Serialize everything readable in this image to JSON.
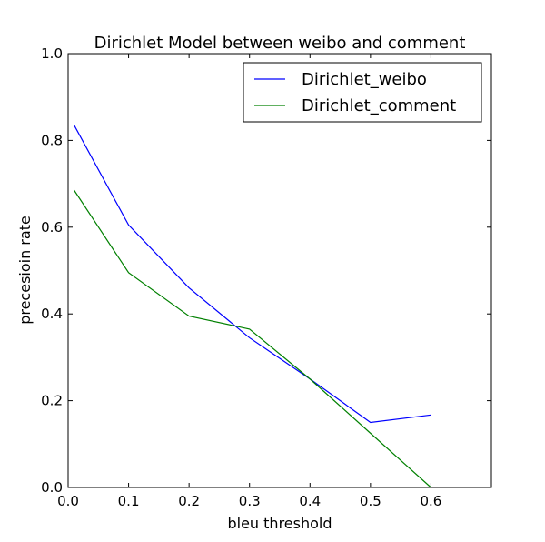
{
  "chart_data": {
    "type": "line",
    "title": "Dirichlet Model between weibo and comment",
    "xlabel": "bleu threshold",
    "ylabel": "precesioin rate",
    "xlim": [
      0.0,
      0.7
    ],
    "ylim": [
      0.0,
      1.0
    ],
    "x_ticks": [
      "0.0",
      "0.1",
      "0.2",
      "0.3",
      "0.4",
      "0.5",
      "0.6"
    ],
    "y_ticks": [
      "0.0",
      "0.2",
      "0.4",
      "0.6",
      "0.8",
      "1.0"
    ],
    "grid": false,
    "legend_position": "top-right",
    "series": [
      {
        "name": "Dirichlet_weibo",
        "color": "#0000ff",
        "x": [
          0.01,
          0.1,
          0.2,
          0.3,
          0.4,
          0.5,
          0.6
        ],
        "y": [
          0.835,
          0.605,
          0.46,
          0.345,
          0.25,
          0.15,
          0.167
        ]
      },
      {
        "name": "Dirichlet_comment",
        "color": "#008000",
        "x": [
          0.01,
          0.1,
          0.2,
          0.3,
          0.4,
          0.5,
          0.6
        ],
        "y": [
          0.685,
          0.495,
          0.395,
          0.365,
          0.25,
          0.125,
          0.0
        ]
      }
    ]
  }
}
